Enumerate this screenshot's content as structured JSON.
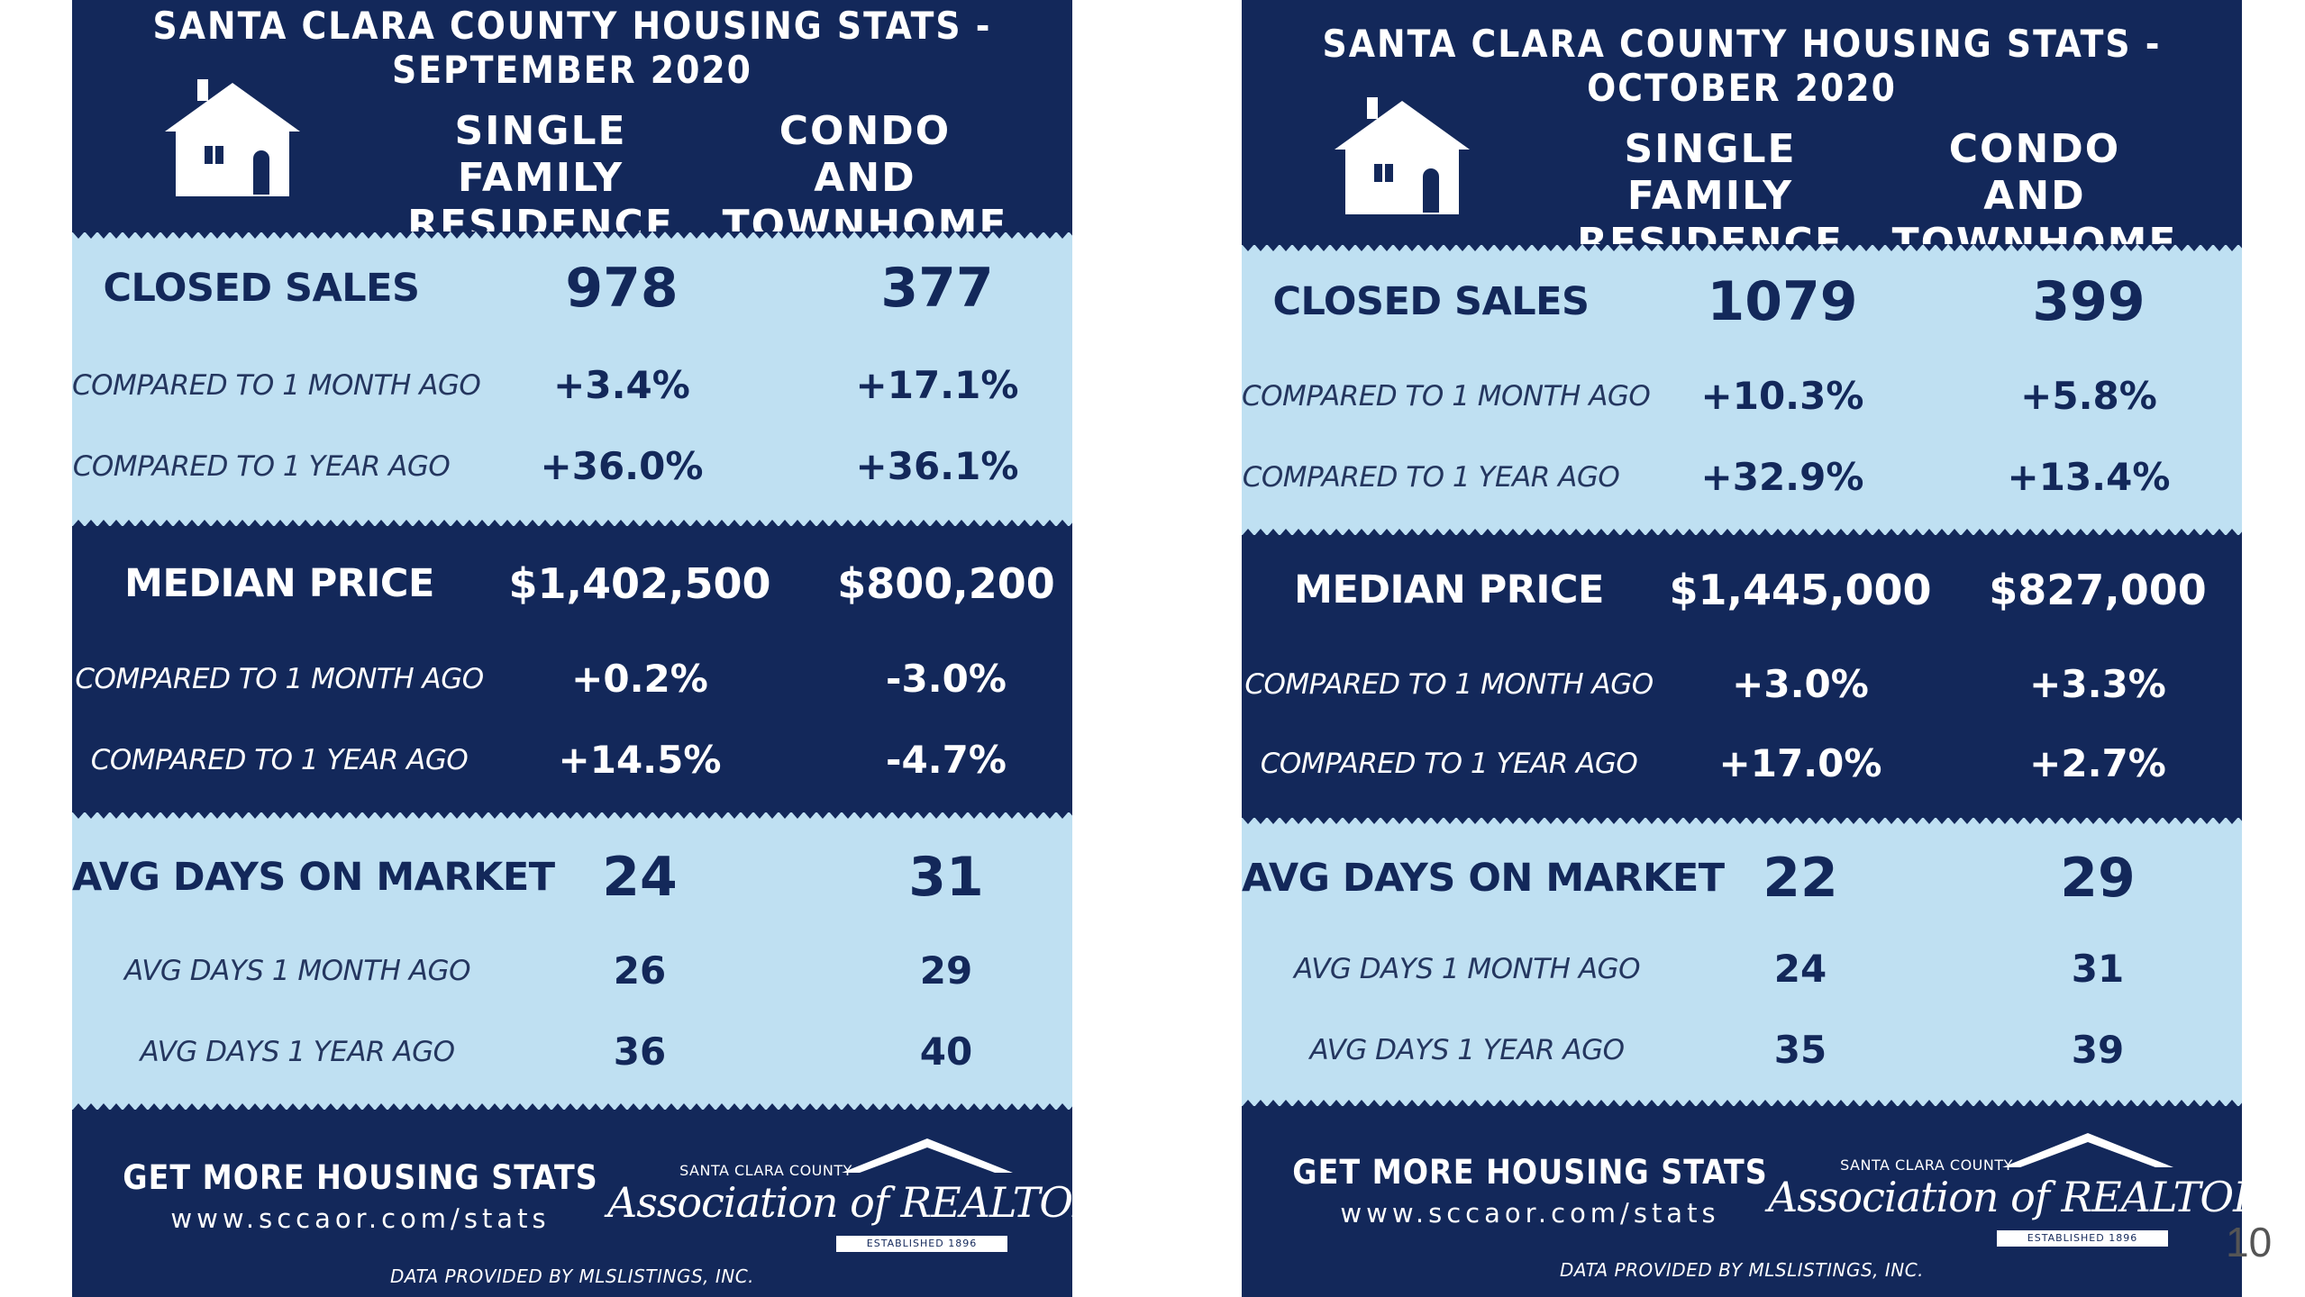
{
  "cards": [
    {
      "title": "SANTA CLARA COUNTY HOUSING STATS - SEPTEMBER 2020",
      "col_sfr": "SINGLE FAMILY RESIDENCE",
      "col_condo": "CONDO AND TOWNHOME",
      "closed_sales": {
        "label": "CLOSED SALES",
        "sfr": "978",
        "condo": "377"
      },
      "closed_month": {
        "label": "COMPARED TO 1 MONTH AGO",
        "sfr": "+3.4%",
        "condo": "+17.1%"
      },
      "closed_year": {
        "label": "COMPARED TO 1 YEAR AGO",
        "sfr": "+36.0%",
        "condo": "+36.1%"
      },
      "median_price": {
        "label": "MEDIAN PRICE",
        "sfr": "$1,402,500",
        "condo": "$800,200"
      },
      "price_month": {
        "label": "COMPARED TO 1 MONTH AGO",
        "sfr": "+0.2%",
        "condo": "-3.0%"
      },
      "price_year": {
        "label": "COMPARED TO 1 YEAR AGO",
        "sfr": "+14.5%",
        "condo": "-4.7%"
      },
      "days": {
        "label": "AVG DAYS ON MARKET",
        "sfr": "24",
        "condo": "31"
      },
      "days_month": {
        "label": "AVG DAYS 1 MONTH AGO",
        "sfr": "26",
        "condo": "29"
      },
      "days_year": {
        "label": "AVG DAYS 1 YEAR AGO",
        "sfr": "36",
        "condo": "40"
      },
      "footer_cta": "GET MORE HOUSING STATS",
      "footer_url": "www.sccaor.com/stats",
      "logo_small": "SANTA CLARA COUNTY",
      "logo_big": "Association of REALTORS",
      "logo_est": "ESTABLISHED 1896",
      "credit": "DATA PROVIDED BY MLSLISTINGS, INC."
    },
    {
      "title": "SANTA CLARA COUNTY HOUSING STATS - OCTOBER 2020",
      "col_sfr": "SINGLE FAMILY RESIDENCE",
      "col_condo": "CONDO AND TOWNHOME",
      "closed_sales": {
        "label": "CLOSED SALES",
        "sfr": "1079",
        "condo": "399"
      },
      "closed_month": {
        "label": "COMPARED TO 1 MONTH AGO",
        "sfr": "+10.3%",
        "condo": "+5.8%"
      },
      "closed_year": {
        "label": "COMPARED TO 1 YEAR AGO",
        "sfr": "+32.9%",
        "condo": "+13.4%"
      },
      "median_price": {
        "label": "MEDIAN PRICE",
        "sfr": "$1,445,000",
        "condo": "$827,000"
      },
      "price_month": {
        "label": "COMPARED TO 1 MONTH AGO",
        "sfr": "+3.0%",
        "condo": "+3.3%"
      },
      "price_year": {
        "label": "COMPARED TO 1 YEAR AGO",
        "sfr": "+17.0%",
        "condo": "+2.7%"
      },
      "days": {
        "label": "AVG DAYS ON MARKET",
        "sfr": "22",
        "condo": "29"
      },
      "days_month": {
        "label": "AVG DAYS 1 MONTH AGO",
        "sfr": "24",
        "condo": "31"
      },
      "days_year": {
        "label": "AVG DAYS 1 YEAR AGO",
        "sfr": "35",
        "condo": "39"
      },
      "footer_cta": "GET MORE HOUSING STATS",
      "footer_url": "www.sccaor.com/stats",
      "logo_small": "SANTA CLARA COUNTY",
      "logo_big": "Association of REALTORS",
      "logo_est": "ESTABLISHED 1896",
      "credit": "DATA PROVIDED BY MLSLISTINGS, INC."
    }
  ],
  "page_number": "10",
  "colors": {
    "navy": "#13285a",
    "light_blue": "#bfe0f2",
    "white": "#ffffff"
  }
}
